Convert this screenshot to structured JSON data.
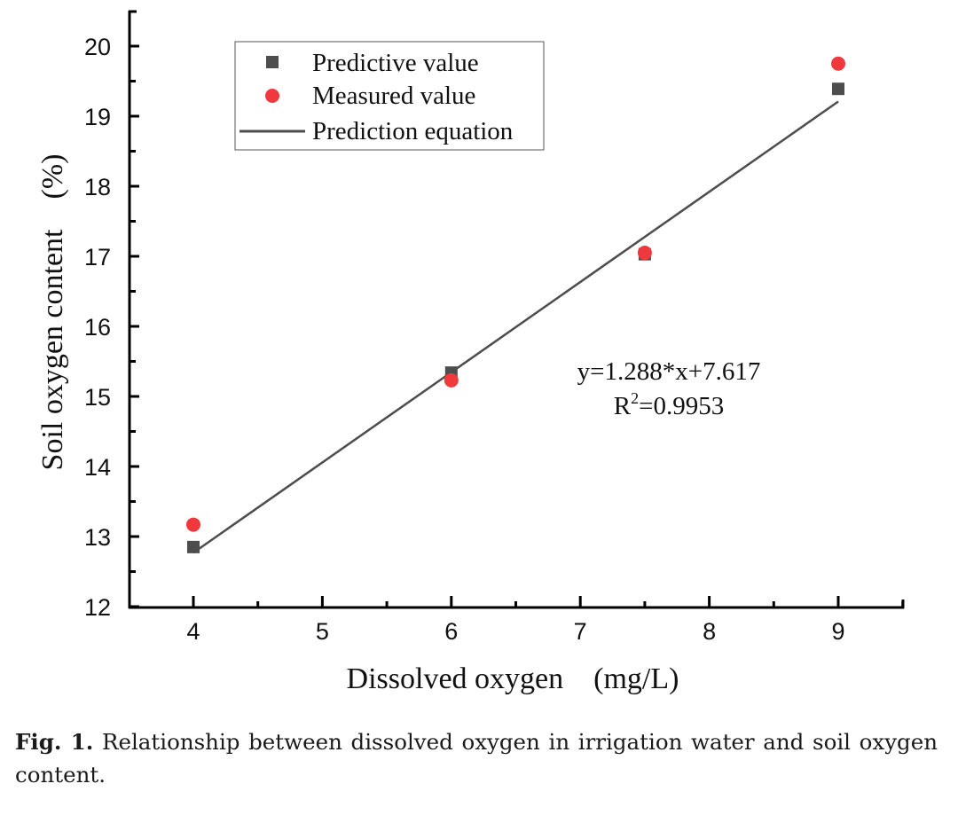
{
  "chart_data": {
    "type": "scatter",
    "title": "",
    "xlabel": "Dissolved oxygen    (mg/L)",
    "ylabel": "Soil oxygen content    (%)",
    "xlim": [
      3.5,
      9.5
    ],
    "ylim": [
      12,
      20.5
    ],
    "xticks": [
      4,
      5,
      6,
      7,
      8,
      9
    ],
    "xtick_labels": [
      "4",
      "5",
      "6",
      "7",
      "8",
      "9"
    ],
    "yticks": [
      12,
      13,
      14,
      15,
      16,
      17,
      18,
      19,
      20
    ],
    "ytick_labels": [
      "12",
      "13",
      "14",
      "15",
      "16",
      "17",
      "18",
      "19",
      "20"
    ],
    "grid": false,
    "legend_position": "top-left",
    "series": [
      {
        "name": "Predictive value",
        "kind": "scatter",
        "marker": "square",
        "color": "#4d4d4d",
        "x": [
          4,
          6,
          7.5,
          9
        ],
        "y": [
          12.85,
          15.34,
          17.03,
          19.39
        ]
      },
      {
        "name": "Measured value",
        "kind": "scatter",
        "marker": "circle",
        "color": "#f0393d",
        "x": [
          4,
          6,
          7.5,
          9
        ],
        "y": [
          13.17,
          15.23,
          17.05,
          19.75
        ]
      },
      {
        "name": "Prediction equation",
        "kind": "line",
        "color": "#4d4d4d",
        "slope": 1.288,
        "intercept": 7.617,
        "x": [
          4,
          9
        ]
      }
    ],
    "annotations": {
      "equation": "y=1.288*x+7.617",
      "r2_prefix": "R",
      "r2_sup": "2",
      "r2_value": "=0.9953"
    }
  },
  "caption": {
    "label": "Fig. 1.",
    "text": " Relationship between dissolved oxygen in irrigation water and soil oxygen content."
  }
}
